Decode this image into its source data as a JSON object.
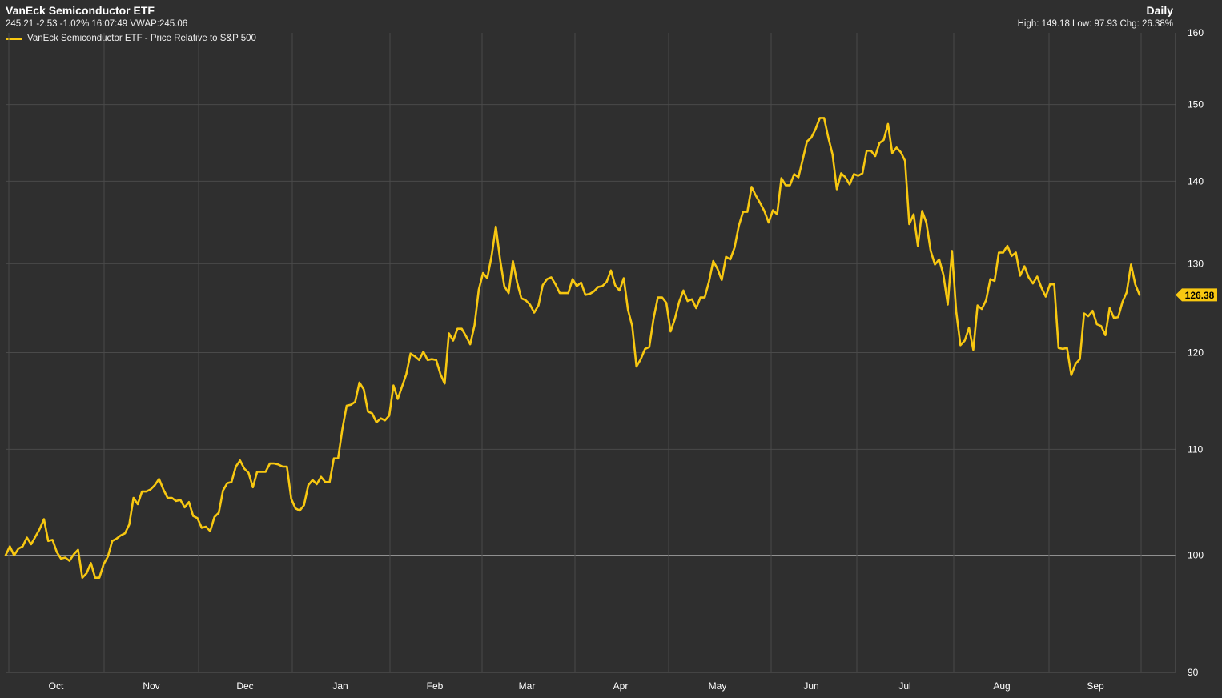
{
  "header": {
    "title": "VanEck Semiconductor ETF",
    "period": "Daily",
    "quote": "245.21 -2.53 -1.02% 16:07:49 VWAP:245.06",
    "stats": "High: 149.18 Low: 97.93 Chg: 26.38%"
  },
  "colors": {
    "background": "#2f2f2f",
    "series": "#f8c811",
    "grid": "#4a4a4a"
  },
  "chart_data": {
    "type": "line",
    "title": "VanEck Semiconductor ETF",
    "xlabel": "",
    "ylabel": "",
    "y_scale": "log",
    "ylim": [
      90,
      160
    ],
    "y_ticks": [
      90,
      100,
      110,
      120,
      130,
      140,
      150,
      160
    ],
    "base_value": 100,
    "x_ticks": [
      "Oct",
      "Nov",
      "Dec",
      "Jan",
      "Feb",
      "Mar",
      "Apr",
      "May",
      "Jun",
      "Jul",
      "Aug",
      "Sep"
    ],
    "grid": true,
    "legend_position": "top-left",
    "last_value": "126.38",
    "series": [
      {
        "name": "VanEck Semiconductor ETF - Price Relative to S&P 500",
        "values": [
          100.0,
          100.8,
          100.0,
          100.6,
          100.8,
          101.6,
          101.0,
          101.7,
          102.4,
          103.3,
          101.3,
          101.4,
          100.3,
          99.7,
          99.8,
          99.5,
          100.1,
          100.5,
          98.0,
          98.4,
          99.3,
          98.0,
          98.0,
          99.2,
          99.9,
          101.3,
          101.5,
          101.8,
          102.0,
          102.8,
          105.3,
          104.7,
          105.9,
          105.9,
          106.1,
          106.5,
          107.1,
          106.1,
          105.3,
          105.3,
          105.0,
          105.1,
          104.4,
          104.9,
          103.6,
          103.4,
          102.5,
          102.6,
          102.2,
          103.5,
          103.9,
          106.0,
          106.7,
          106.8,
          108.3,
          108.9,
          108.1,
          107.7,
          106.3,
          107.8,
          107.8,
          107.8,
          108.6,
          108.6,
          108.5,
          108.3,
          108.3,
          105.2,
          104.3,
          104.1,
          104.6,
          106.5,
          107.0,
          106.6,
          107.3,
          106.8,
          106.8,
          109.1,
          109.1,
          112.0,
          114.4,
          114.5,
          114.8,
          116.8,
          116.1,
          113.8,
          113.6,
          112.7,
          113.1,
          112.9,
          113.4,
          116.5,
          115.1,
          116.4,
          117.7,
          119.9,
          119.6,
          119.2,
          120.1,
          119.2,
          119.3,
          119.2,
          117.7,
          116.7,
          122.1,
          121.3,
          122.6,
          122.6,
          121.8,
          120.9,
          123.0,
          127.0,
          128.9,
          128.3,
          130.9,
          134.4,
          130.5,
          127.4,
          126.6,
          130.3,
          127.8,
          126.0,
          125.8,
          125.3,
          124.4,
          125.2,
          127.5,
          128.2,
          128.4,
          127.6,
          126.6,
          126.6,
          126.6,
          128.2,
          127.4,
          127.8,
          126.4,
          126.5,
          126.8,
          127.3,
          127.4,
          127.9,
          129.2,
          127.5,
          126.9,
          128.3,
          124.7,
          122.9,
          118.5,
          119.3,
          120.4,
          120.6,
          123.7,
          126.1,
          126.1,
          125.5,
          122.3,
          123.7,
          125.6,
          126.9,
          125.7,
          125.9,
          124.9,
          126.1,
          126.1,
          127.9,
          130.3,
          129.4,
          128.1,
          130.8,
          130.5,
          131.9,
          134.5,
          136.2,
          136.2,
          139.3,
          138.2,
          137.3,
          136.3,
          134.9,
          136.4,
          135.9,
          140.4,
          139.5,
          139.5,
          140.9,
          140.5,
          142.8,
          145.1,
          145.6,
          146.7,
          148.2,
          148.2,
          145.6,
          143.4,
          139.0,
          141.0,
          140.5,
          139.6,
          140.9,
          140.7,
          141.0,
          143.9,
          143.9,
          143.2,
          144.9,
          145.3,
          147.4,
          143.6,
          144.3,
          143.7,
          142.6,
          134.7,
          135.9,
          132.1,
          136.3,
          134.9,
          131.5,
          129.9,
          130.5,
          128.7,
          125.3,
          131.5,
          124.5,
          120.8,
          121.3,
          122.7,
          120.3,
          125.2,
          124.8,
          125.8,
          128.2,
          128.0,
          131.3,
          131.3,
          132.1,
          130.9,
          131.3,
          128.6,
          129.7,
          128.4,
          127.7,
          128.5,
          127.2,
          126.2,
          127.6,
          127.6,
          120.5,
          120.4,
          120.5,
          117.6,
          118.8,
          119.3,
          124.3,
          124.0,
          124.6,
          123.1,
          122.9,
          121.9,
          124.9,
          123.8,
          123.9,
          125.6,
          126.7,
          129.9,
          127.6,
          126.4
        ]
      }
    ]
  }
}
